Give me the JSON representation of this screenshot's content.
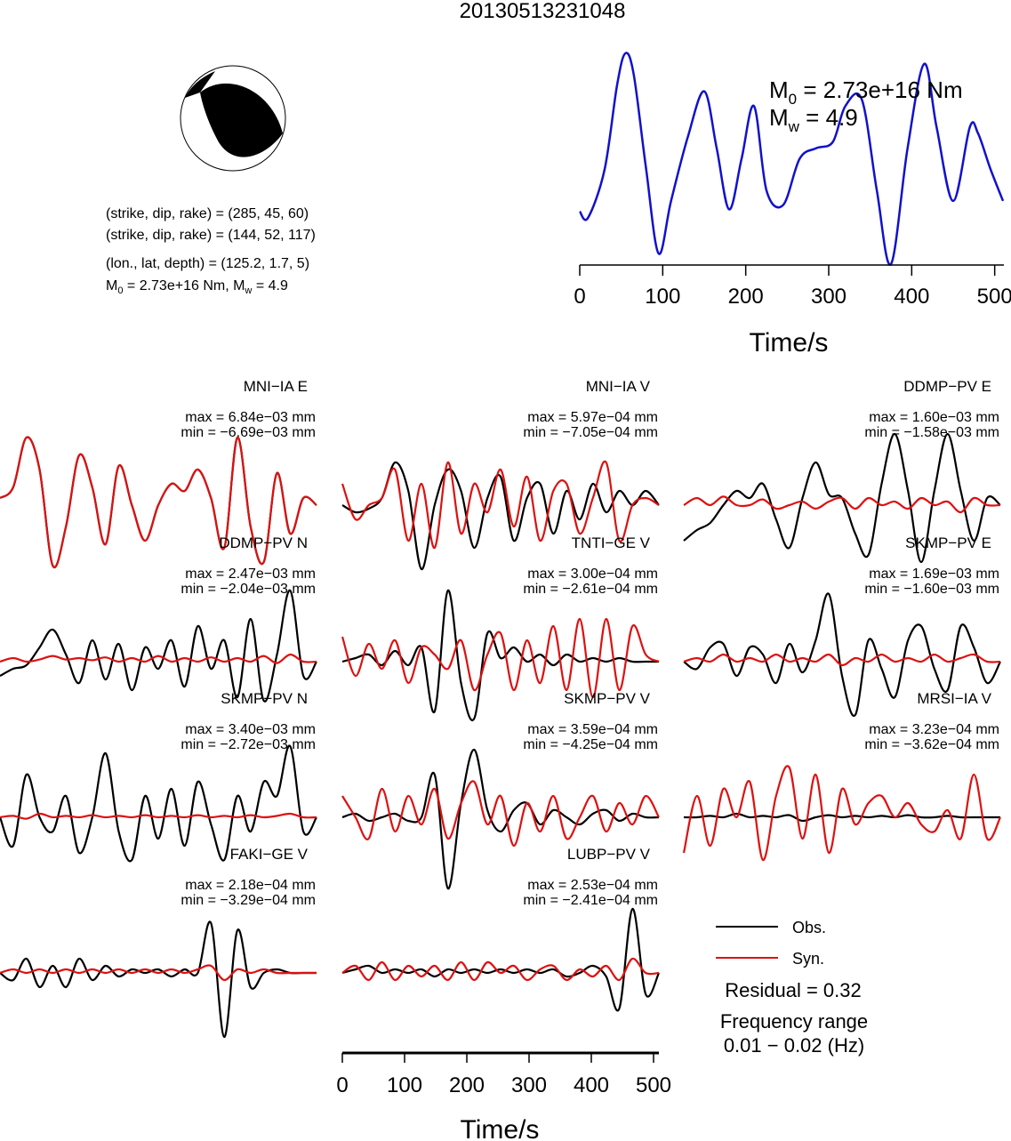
{
  "page_title": "20130513231048",
  "colors": {
    "obs": "#000000",
    "syn": "#dd1111",
    "stf": "#1111cc",
    "beach_fill": "#000000"
  },
  "info": {
    "line1": "(strike, dip, rake) = (285, 45, 60)",
    "line2": "(strike, dip, rake) = (144, 52, 117)",
    "line3": "(lon., lat, depth) = (125.2, 1.7, 5)",
    "m0_prefix": "M",
    "m0_sub": "0",
    "m0_value": " = 2.73e+16 Nm, M",
    "mw_sub": "w",
    "mw_value": " = 4.9"
  },
  "stf": {
    "m0_label": "M",
    "m0_sub": "0",
    "m0_text": " = 2.73e+16 Nm",
    "mw_label": "M",
    "mw_sub": "w",
    "mw_text": " = 4.9",
    "xlabel": "Time/s",
    "xticks": [
      "0",
      "100",
      "200",
      "300",
      "400",
      "500"
    ]
  },
  "wave_axis": {
    "xlabel": "Time/s",
    "xticks": [
      "0",
      "100",
      "200",
      "300",
      "400",
      "500"
    ]
  },
  "legend": {
    "obs": "Obs.",
    "syn": "Syn.",
    "residual": "Residual = 0.32",
    "freq_title": "Frequency range",
    "freq_value": "0.01 − 0.02 (Hz)"
  },
  "chart_data": [
    {
      "type": "line",
      "title": "",
      "xlabel": "Time/s",
      "ylabel": "",
      "xlim": [
        0,
        510
      ],
      "series": [
        {
          "name": "",
          "x": [
            0,
            10,
            30,
            45,
            55,
            65,
            80,
            95,
            110,
            130,
            150,
            165,
            180,
            195,
            210,
            225,
            245,
            265,
            285,
            305,
            320,
            340,
            358,
            375,
            395,
            415,
            430,
            450,
            470,
            480,
            495,
            510
          ],
          "y": [
            0.25,
            0.22,
            0.45,
            0.85,
            1.0,
            0.9,
            0.45,
            0.05,
            0.3,
            0.6,
            0.82,
            0.55,
            0.26,
            0.5,
            0.75,
            0.35,
            0.28,
            0.5,
            0.55,
            0.58,
            0.75,
            0.78,
            0.35,
            0.0,
            0.55,
            0.95,
            0.65,
            0.3,
            0.65,
            0.62,
            0.45,
            0.3
          ]
        }
      ]
    },
    {
      "type": "line",
      "title": "MNI−IA E",
      "max": "max = 6.84e−03 mm",
      "min": "min = −6.69e−03 mm",
      "obs": [
        0.1,
        0.25,
        0.95,
        0.5,
        -0.85,
        -0.3,
        0.7,
        0.25,
        -0.55,
        0.55,
        0.0,
        -0.5,
        0.0,
        0.3,
        0.2,
        0.5,
        0.1,
        -0.6,
        0.95,
        -0.3,
        -0.8,
        0.45,
        -0.4,
        0.1,
        0.0
      ],
      "syn": [
        0.1,
        0.25,
        0.95,
        0.5,
        -0.85,
        -0.3,
        0.7,
        0.25,
        -0.55,
        0.55,
        0.0,
        -0.5,
        0.0,
        0.3,
        0.2,
        0.5,
        0.1,
        -0.6,
        0.95,
        -0.3,
        -0.8,
        0.45,
        -0.4,
        0.1,
        0.0
      ]
    },
    {
      "type": "line",
      "title": "MNI−IA V",
      "max": "max = 5.97e−04 mm",
      "min": "min = −7.05e−04 mm",
      "obs": [
        0.0,
        -0.1,
        -0.05,
        0.1,
        0.6,
        0.2,
        -0.9,
        0.0,
        0.5,
        0.2,
        -0.6,
        0.1,
        0.4,
        -0.5,
        0.1,
        0.3,
        -0.4,
        0.2,
        -0.2,
        0.3,
        -0.1,
        0.2,
        0.0,
        0.2,
        0.0
      ],
      "syn": [
        0.3,
        -0.2,
        0.0,
        0.1,
        0.5,
        -0.5,
        0.3,
        -0.6,
        0.6,
        -0.4,
        0.3,
        -0.1,
        0.5,
        -0.3,
        0.4,
        -0.5,
        0.2,
        0.3,
        -0.4,
        0.1,
        0.6,
        -0.5,
        0.0,
        0.1,
        0.0
      ]
    },
    {
      "type": "line",
      "title": "DDMP−PV E",
      "max": "max = 1.60e−03 mm",
      "min": "min = −1.58e−03 mm",
      "obs": [
        -0.5,
        -0.35,
        -0.25,
        0.0,
        0.2,
        0.1,
        0.3,
        -0.2,
        -0.6,
        0.1,
        0.6,
        0.15,
        0.1,
        -0.4,
        -0.7,
        0.3,
        1.0,
        0.2,
        -0.8,
        0.2,
        1.0,
        0.2,
        -0.5,
        0.1,
        0.0
      ],
      "syn": [
        0.0,
        0.1,
        0.0,
        0.12,
        0.0,
        0.0,
        0.08,
        -0.05,
        0.0,
        0.05,
        -0.05,
        0.05,
        0.1,
        -0.05,
        0.1,
        0.0,
        0.05,
        -0.05,
        0.1,
        0.0,
        0.05,
        -0.1,
        0.1,
        0.0,
        0.0
      ]
    },
    {
      "type": "line",
      "title": "DDMP−PV N",
      "max": "max = 2.47e−03 mm",
      "min": "min = −2.04e−03 mm",
      "obs": [
        -0.2,
        -0.1,
        -0.05,
        0.2,
        0.45,
        0.1,
        -0.3,
        0.3,
        -0.25,
        0.25,
        -0.4,
        0.2,
        -0.1,
        0.3,
        -0.35,
        0.5,
        -0.1,
        0.3,
        -0.5,
        0.6,
        -0.55,
        0.1,
        1.0,
        -0.2,
        0.0
      ],
      "syn": [
        0.0,
        0.05,
        0.0,
        0.03,
        0.08,
        0.03,
        0.05,
        0.02,
        0.06,
        0.0,
        0.05,
        0.0,
        0.08,
        0.0,
        0.05,
        0.0,
        0.06,
        0.0,
        0.05,
        0.0,
        0.08,
        -0.02,
        0.1,
        0.0,
        0.0
      ]
    },
    {
      "type": "line",
      "title": "TNTI−GE V",
      "max": "max = 3.00e−04 mm",
      "min": "min = −2.61e−04 mm",
      "obs": [
        0.0,
        0.05,
        0.1,
        -0.05,
        0.15,
        -0.05,
        0.2,
        -0.7,
        1.0,
        -0.3,
        -0.8,
        0.4,
        0.05,
        0.2,
        0.0,
        0.1,
        -0.05,
        0.1,
        0.0,
        0.05,
        0.0,
        0.05,
        0.0,
        0.0,
        0.0
      ],
      "syn": [
        0.35,
        -0.2,
        0.25,
        -0.1,
        0.3,
        -0.3,
        0.2,
        0.1,
        -0.1,
        0.3,
        -0.4,
        0.1,
        0.4,
        -0.4,
        0.3,
        -0.3,
        0.5,
        -0.4,
        0.6,
        -0.5,
        0.6,
        -0.4,
        0.5,
        0.1,
        0.0
      ]
    },
    {
      "type": "line",
      "title": "SKMP−PV E",
      "max": "max = 1.69e−03 mm",
      "min": "min = −1.60e−03 mm",
      "obs": [
        0.0,
        -0.1,
        0.2,
        0.25,
        -0.2,
        0.2,
        0.1,
        -0.3,
        0.25,
        -0.15,
        0.3,
        0.95,
        -0.2,
        -0.75,
        0.3,
        -0.1,
        -0.5,
        0.3,
        0.5,
        -0.1,
        -0.4,
        0.5,
        0.2,
        -0.3,
        0.0
      ],
      "syn": [
        0.0,
        0.05,
        0.0,
        0.1,
        0.0,
        0.05,
        0.0,
        0.1,
        0.0,
        0.05,
        0.0,
        0.1,
        -0.05,
        0.05,
        0.0,
        0.1,
        0.0,
        0.05,
        0.0,
        0.1,
        0.0,
        0.05,
        0.1,
        0.0,
        0.0
      ]
    },
    {
      "type": "line",
      "title": "SKMP−PV N",
      "max": "max = 3.40e−03 mm",
      "min": "min = −2.72e−03 mm",
      "obs": [
        0.0,
        -0.4,
        0.6,
        0.0,
        -0.2,
        0.3,
        -0.5,
        0.0,
        0.9,
        -0.2,
        -0.6,
        0.3,
        -0.3,
        0.4,
        -0.4,
        0.5,
        -0.1,
        -0.6,
        0.3,
        -0.2,
        0.5,
        0.3,
        1.0,
        -0.2,
        0.0
      ],
      "syn": [
        0.0,
        0.02,
        -0.02,
        0.05,
        0.0,
        0.02,
        0.0,
        0.03,
        0.0,
        0.02,
        0.0,
        0.03,
        0.0,
        0.02,
        0.0,
        0.03,
        0.0,
        0.02,
        0.0,
        0.03,
        0.0,
        0.02,
        0.05,
        0.0,
        0.0
      ]
    },
    {
      "type": "line",
      "title": "SKMP−PV V",
      "max": "max = 3.59e−04 mm",
      "min": "min = −4.25e−04 mm",
      "obs": [
        0.0,
        0.05,
        -0.05,
        0.0,
        0.05,
        -0.05,
        0.0,
        0.6,
        -1.0,
        0.2,
        0.95,
        0.1,
        -0.2,
        0.1,
        0.2,
        -0.1,
        0.1,
        0.0,
        -0.1,
        0.05,
        0.1,
        -0.05,
        0.05,
        0.0,
        0.0
      ],
      "syn": [
        0.3,
        0.0,
        -0.3,
        0.4,
        -0.2,
        0.3,
        -0.1,
        0.4,
        -0.3,
        0.2,
        0.5,
        -0.1,
        0.3,
        -0.4,
        0.2,
        -0.2,
        0.3,
        -0.3,
        0.0,
        0.3,
        -0.2,
        0.2,
        -0.1,
        0.3,
        0.0
      ]
    },
    {
      "type": "line",
      "title": "MRSI−IA V",
      "max": "max = 3.23e−04 mm",
      "min": "min = −3.62e−04 mm",
      "obs": [
        0.0,
        0.0,
        0.02,
        0.0,
        0.05,
        0.0,
        0.02,
        0.0,
        0.03,
        -0.05,
        0.0,
        0.03,
        0.0,
        0.02,
        0.0,
        0.02,
        0.0,
        0.03,
        0.0,
        0.0,
        0.02,
        0.0,
        0.0,
        0.0,
        0.0
      ],
      "syn": [
        -0.5,
        0.3,
        -0.4,
        0.4,
        0.0,
        0.5,
        -0.6,
        0.3,
        0.7,
        -0.3,
        0.6,
        -0.5,
        0.4,
        -0.1,
        0.2,
        0.3,
        0.0,
        0.2,
        -0.1,
        -0.2,
        0.1,
        -0.3,
        0.6,
        -0.3,
        0.0
      ]
    },
    {
      "type": "line",
      "title": "FAKI−GE V",
      "max": "max = 2.18e−04 mm",
      "min": "min = −3.29e−04 mm",
      "obs": [
        0.0,
        -0.1,
        0.2,
        -0.2,
        0.1,
        -0.2,
        0.2,
        -0.1,
        0.1,
        -0.05,
        0.05,
        0.0,
        0.05,
        -0.05,
        0.05,
        0.0,
        0.7,
        -0.9,
        0.6,
        -0.2,
        0.0,
        0.05,
        0.0,
        0.0,
        0.0
      ],
      "syn": [
        0.0,
        0.05,
        0.0,
        0.05,
        0.0,
        0.05,
        0.0,
        0.05,
        0.0,
        0.05,
        0.0,
        0.05,
        0.0,
        0.05,
        0.0,
        0.05,
        0.1,
        -0.1,
        0.05,
        0.0,
        0.05,
        0.0,
        0.0,
        0.0,
        0.0
      ]
    },
    {
      "type": "line",
      "title": "LUBP−PV V",
      "max": "max = 2.53e−04 mm",
      "min": "min = −2.41e−04 mm",
      "obs": [
        0.0,
        0.05,
        0.1,
        0.0,
        0.05,
        0.0,
        0.05,
        -0.05,
        0.05,
        0.0,
        0.05,
        0.0,
        0.05,
        0.0,
        0.05,
        0.0,
        0.05,
        -0.05,
        0.0,
        0.1,
        -0.05,
        -0.5,
        0.9,
        -0.3,
        0.0
      ],
      "syn": [
        0.0,
        0.1,
        -0.1,
        0.15,
        -0.1,
        0.1,
        -0.05,
        0.1,
        -0.1,
        0.15,
        -0.1,
        0.15,
        0.0,
        0.1,
        -0.1,
        0.05,
        0.1,
        -0.1,
        0.05,
        -0.05,
        0.1,
        -0.1,
        0.2,
        0.0,
        0.0
      ]
    }
  ]
}
